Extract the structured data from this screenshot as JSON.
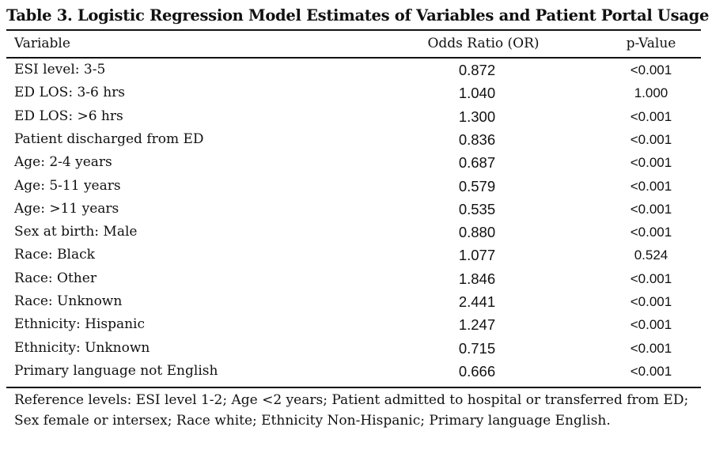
{
  "table": {
    "title": "Table 3. Logistic Regression Model Estimates of Variables and Patient Portal Usage",
    "headers": {
      "variable": "Variable",
      "odds_ratio": "Odds Ratio (OR)",
      "p_value": "p-Value"
    },
    "rows": [
      {
        "variable": "ESI level: 3-5",
        "odds_ratio": "0.872",
        "p_value": "<0.001"
      },
      {
        "variable": "ED LOS: 3-6 hrs",
        "odds_ratio": "1.040",
        "p_value": "1.000"
      },
      {
        "variable": "ED LOS: >6 hrs",
        "odds_ratio": "1.300",
        "p_value": "<0.001"
      },
      {
        "variable": "Patient discharged from ED",
        "odds_ratio": "0.836",
        "p_value": "<0.001"
      },
      {
        "variable": "Age: 2-4 years",
        "odds_ratio": "0.687",
        "p_value": "<0.001"
      },
      {
        "variable": "Age: 5-11 years",
        "odds_ratio": "0.579",
        "p_value": "<0.001"
      },
      {
        "variable": "Age: >11 years",
        "odds_ratio": "0.535",
        "p_value": "<0.001"
      },
      {
        "variable": "Sex at birth: Male",
        "odds_ratio": "0.880",
        "p_value": "<0.001"
      },
      {
        "variable": "Race: Black",
        "odds_ratio": "1.077",
        "p_value": "0.524"
      },
      {
        "variable": "Race: Other",
        "odds_ratio": "1.846",
        "p_value": "<0.001"
      },
      {
        "variable": "Race: Unknown",
        "odds_ratio": "2.441",
        "p_value": "<0.001"
      },
      {
        "variable": "Ethnicity: Hispanic",
        "odds_ratio": "1.247",
        "p_value": "<0.001"
      },
      {
        "variable": "Ethnicity: Unknown",
        "odds_ratio": "0.715",
        "p_value": "<0.001"
      },
      {
        "variable": "Primary language not English",
        "odds_ratio": "0.666",
        "p_value": "<0.001"
      }
    ],
    "footnote": "Reference levels: ESI level 1-2; Age <2 years; Patient admitted to hospital or transferred from ED; Sex female or intersex; Race white; Ethnicity Non-Hispanic; Primary language English."
  }
}
